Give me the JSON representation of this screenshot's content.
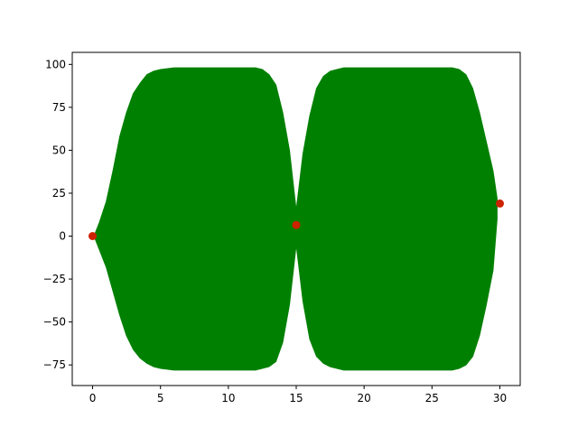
{
  "chart_data": {
    "type": "area",
    "title": "",
    "xlabel": "",
    "ylabel": "",
    "xlim": [
      -1.5,
      31.5
    ],
    "ylim": [
      -87,
      107
    ],
    "x_ticks": [
      0,
      5,
      10,
      15,
      20,
      25,
      30
    ],
    "x_tick_labels": [
      "0",
      "5",
      "10",
      "15",
      "20",
      "25",
      "30"
    ],
    "y_ticks": [
      -75,
      -50,
      -25,
      0,
      25,
      50,
      75,
      100
    ],
    "y_tick_labels": [
      "−75",
      "−50",
      "−25",
      "0",
      "25",
      "50",
      "75",
      "100"
    ],
    "grid": false,
    "legend": "none",
    "series": [
      {
        "type": "area",
        "color": "#008000",
        "x": [
          0.2,
          0.5,
          1,
          1.5,
          2,
          2.5,
          3,
          3.5,
          4,
          4.5,
          5,
          6,
          7,
          8,
          9,
          10,
          11,
          12,
          12.5,
          13,
          13.5,
          14,
          14.5,
          15,
          15.5,
          16,
          16.5,
          17,
          17.5,
          18,
          18.5,
          19,
          20,
          21,
          22,
          23,
          24,
          25,
          26,
          26.5,
          27,
          27.5,
          28,
          28.5,
          29,
          29.5,
          29.8
        ],
        "upper": [
          2,
          8,
          20,
          38,
          58,
          72,
          83,
          89,
          94,
          96,
          97,
          98,
          98,
          98,
          98,
          98,
          98,
          98,
          97,
          94,
          88,
          72,
          50,
          15,
          48,
          70,
          86,
          93,
          96,
          97,
          98,
          98,
          98,
          98,
          98,
          98,
          98,
          98,
          98,
          98,
          97,
          94,
          86,
          72,
          55,
          38,
          22
        ],
        "lower": [
          -2,
          -8,
          -18,
          -32,
          -46,
          -58,
          -66,
          -71,
          -74,
          -76,
          -77,
          -78,
          -78,
          -78,
          -78,
          -78,
          -78,
          -78,
          -77,
          -76,
          -73,
          -62,
          -40,
          -5,
          -38,
          -60,
          -70,
          -74,
          -76,
          -77,
          -78,
          -78,
          -78,
          -78,
          -78,
          -78,
          -78,
          -78,
          -78,
          -78,
          -77,
          -75,
          -70,
          -58,
          -40,
          -20,
          10
        ]
      },
      {
        "type": "scatter",
        "color": "#cc2200",
        "x": [
          0,
          15,
          30
        ],
        "y": [
          0,
          6.5,
          19
        ]
      }
    ]
  }
}
